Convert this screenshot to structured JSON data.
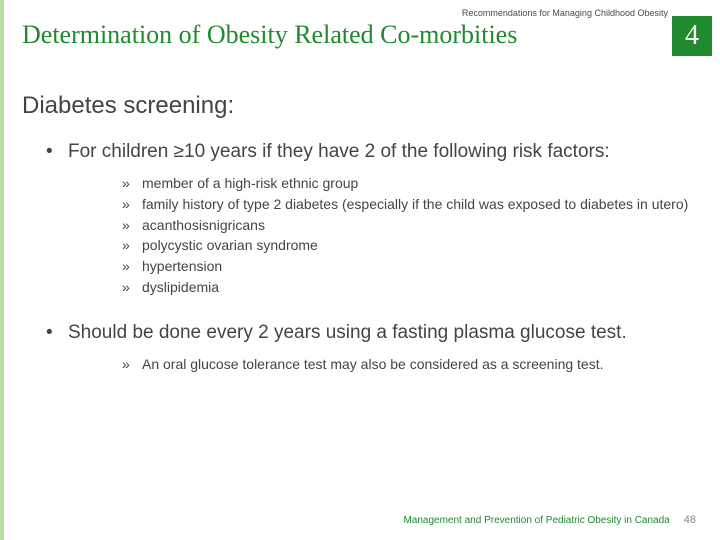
{
  "colors": {
    "accent_green": "#1f8a2e",
    "left_edge": "#b8dca3",
    "text_body": "#444444",
    "page_num": "#888888",
    "background": "#ffffff"
  },
  "typography": {
    "title_font": "Georgia, serif",
    "title_size_pt": 20,
    "body_font": "Arial, sans-serif",
    "subheading_size_pt": 18,
    "lvl1_size_pt": 14,
    "lvl2_size_pt": 11,
    "footer_size_pt": 8
  },
  "header": {
    "eyebrow": "Recommendations for Managing Childhood Obesity",
    "title": "Determination of Obesity Related Co-morbities",
    "badge_number": "4"
  },
  "subheading": "Diabetes screening:",
  "bullets": [
    {
      "text": "For children ≥10 years if they have 2 of the following risk factors:",
      "sub": [
        "member of a high-risk ethnic group",
        "family history of type 2 diabetes (especially if the child was exposed to diabetes in utero)",
        "acanthosisnigricans",
        "polycystic ovarian syndrome",
        "hypertension",
        "dyslipidemia"
      ]
    },
    {
      "text": "Should be done every 2 years using a fasting plasma glucose test.",
      "sub": [
        "An oral glucose tolerance test may also be considered as a screening test."
      ]
    }
  ],
  "footer": {
    "text": "Management and Prevention of Pediatric Obesity in Canada",
    "page": "48"
  }
}
